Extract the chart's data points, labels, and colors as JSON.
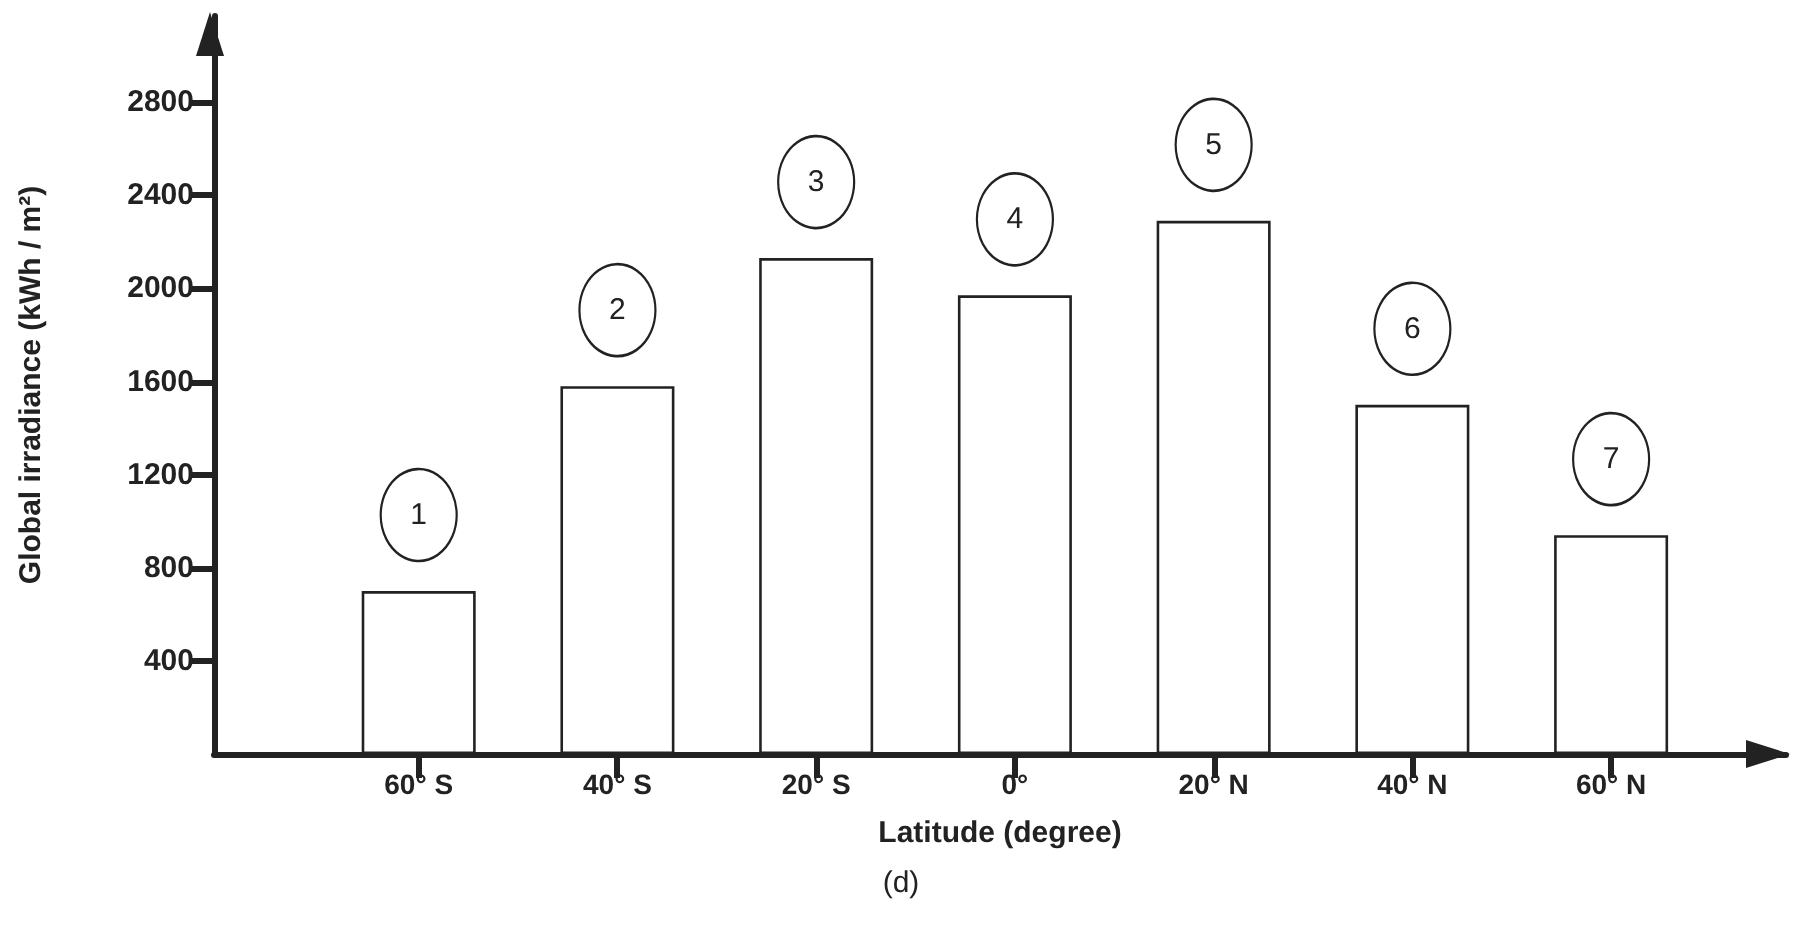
{
  "chart_data": {
    "type": "bar",
    "xlabel": "Latitude (degree)",
    "ylabel": "Global irradiance (kWh / m²)",
    "categories": [
      "60° S",
      "40° S",
      "20° S",
      "0°",
      "20° N",
      "40° N",
      "60° N"
    ],
    "values": [
      700,
      1580,
      2130,
      1970,
      2290,
      1500,
      940
    ],
    "color": "#ffffff",
    "ylim": [
      0,
      3170
    ],
    "yticks": [
      400,
      800,
      1200,
      1600,
      2000,
      2400,
      2800
    ],
    "annotations": [
      "1",
      "2",
      "3",
      "4",
      "5",
      "6",
      "7",
      "(d)"
    ]
  }
}
